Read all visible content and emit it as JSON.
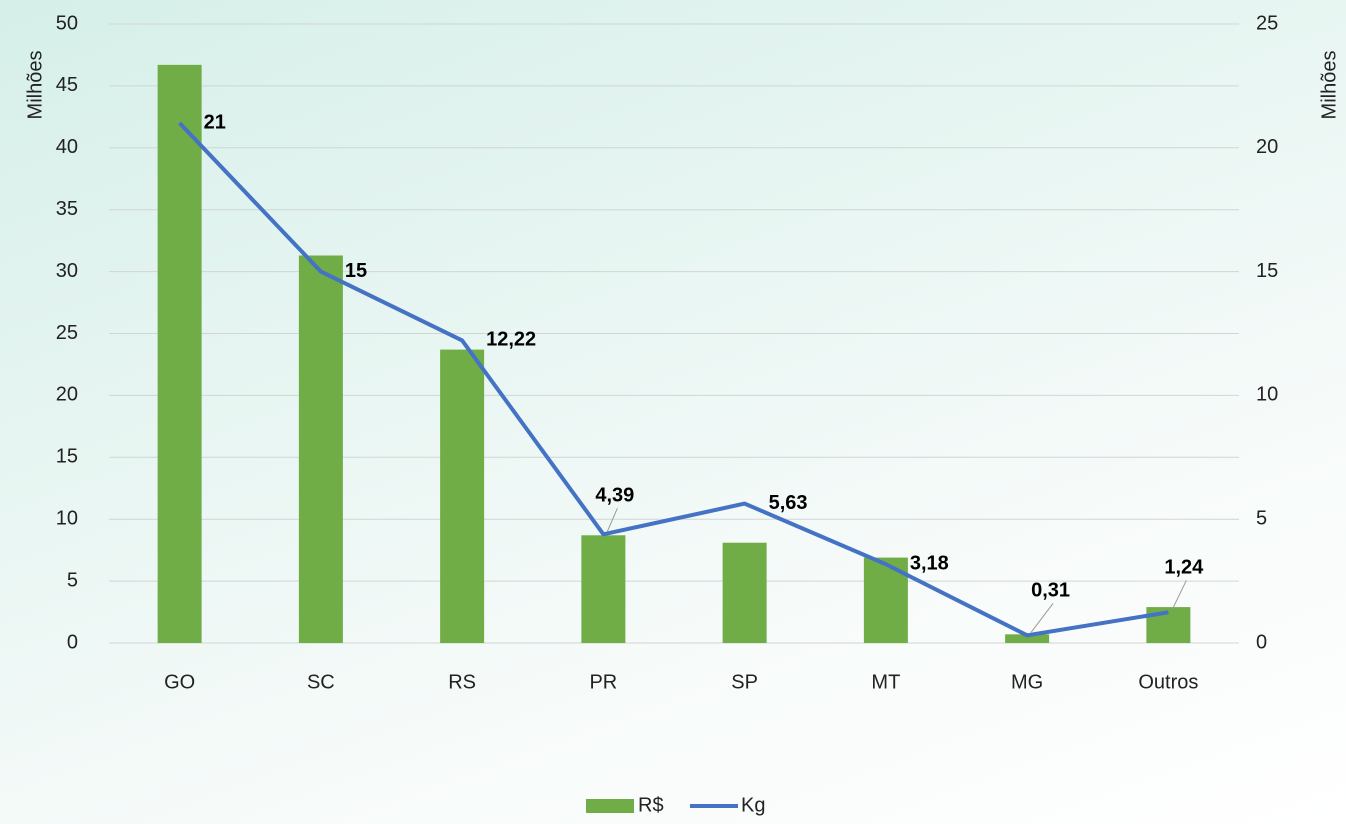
{
  "chart_data": {
    "type": "bar_line",
    "categories": [
      "GO",
      "SC",
      "RS",
      "PR",
      "SP",
      "MT",
      "MG",
      "Outros"
    ],
    "series": [
      {
        "name": "R$",
        "color": "#70ad47",
        "type": "bar",
        "values": [
          46.7,
          31.3,
          23.7,
          8.7,
          8.1,
          6.9,
          0.7,
          2.9
        ]
      },
      {
        "name": "Kg",
        "color": "#4472c4",
        "type": "line",
        "axis": "y2",
        "values": [
          21,
          15,
          12.22,
          4.39,
          5.63,
          3.18,
          0.31,
          1.24
        ],
        "value_labels": [
          "21",
          "15",
          "12,22",
          "4,39",
          "5,63",
          "3,18",
          "0,31",
          "1,24"
        ]
      }
    ],
    "ylabel": "Milhões",
    "y2label": "Milhões",
    "ylim": [
      0,
      50
    ],
    "yticks": [
      0,
      5,
      10,
      15,
      20,
      25,
      30,
      35,
      40,
      45,
      50
    ],
    "y2lim": [
      0,
      25
    ],
    "y2ticks": [
      0,
      5,
      10,
      15,
      20,
      25
    ],
    "grid": true,
    "legend": "bottom"
  }
}
